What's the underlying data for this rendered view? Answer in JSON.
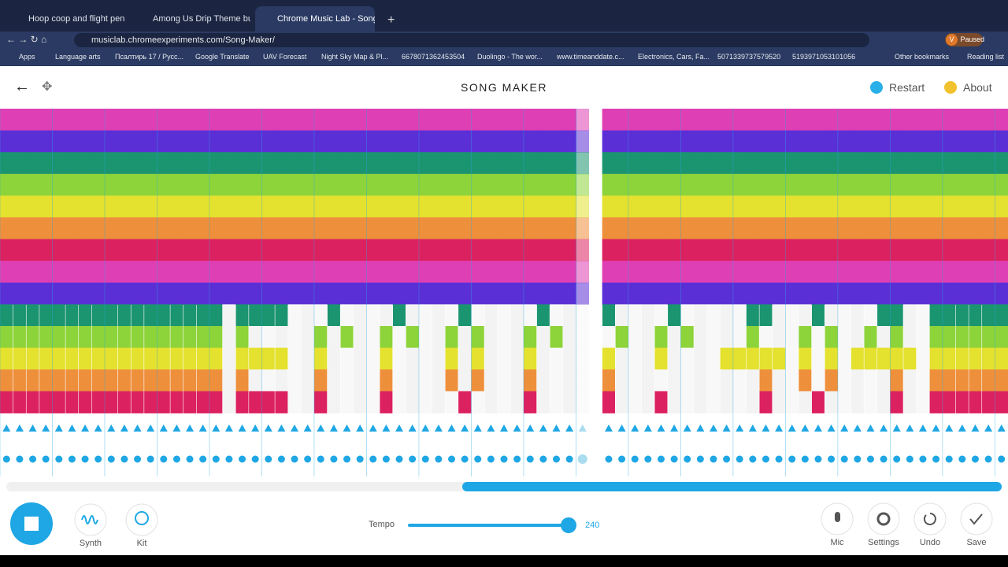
{
  "browser": {
    "tabs": [
      "Hoop coop and flight pen wire b",
      "Among Us Drip Theme but it's in",
      "Chrome Music Lab - Song M"
    ],
    "url": "musiclab.chromeexperiments.com/Song-Maker/",
    "profile_initial": "V",
    "profile_status": "Paused",
    "bookmarks": [
      "Apps",
      "Language arts",
      "Псалтирь 17 / Русс...",
      "Google Translate",
      "UAV Forecast",
      "Night Sky Map & Pl...",
      "6678071362453504",
      "Duolingo - The wor...",
      "www.timeanddate.c...",
      "Electronics, Cars, Fa...",
      "5071339737579520",
      "5193971053101056"
    ],
    "other_bookmarks": "Other bookmarks",
    "reading_list": "Reading list"
  },
  "app": {
    "title": "SONG MAKER",
    "restart": "Restart",
    "about": "About",
    "synth": "Synth",
    "kit": "Kit",
    "tempo_label": "Tempo",
    "tempo_value": "240",
    "mic": "Mic",
    "settings": "Settings",
    "undo": "Undo",
    "save": "Save"
  }
}
